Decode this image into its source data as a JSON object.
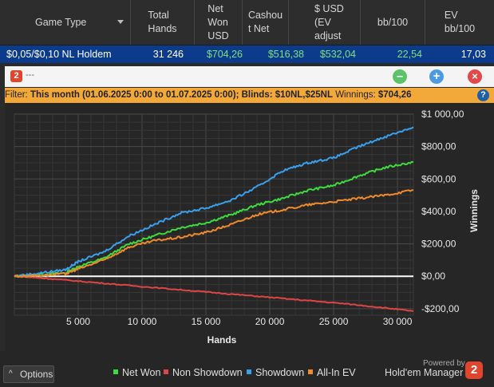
{
  "table": {
    "headers": {
      "game_type": "Game Type",
      "total_hands": "Total\nHands",
      "net_won": "Net\nWon\nUSD",
      "cashout": "Cashou\nt Net",
      "ev": "$ USD\n(EV\nadjust",
      "bb100": "bb/100",
      "ev_bb100": "EV\nbb/100"
    },
    "row": {
      "game_type": "$0,05/$0,10 NL Holdem",
      "total_hands": "31 246",
      "net_won": "$704,26",
      "cashout": "$516,38",
      "ev": "$532,04",
      "bb100": "22,54",
      "ev_bb100": "17,03"
    }
  },
  "window": {
    "logo_text": "2",
    "title": "---",
    "buttons": {
      "minimize": "–",
      "add": "+",
      "close": "×"
    },
    "help": "?"
  },
  "filter": {
    "prefix": "Filter: ",
    "range": "This month (01.06.2025 0:00 to 01.07.2025 0:00)",
    "blinds_label": "; Blinds: ",
    "blinds": "$10NL,$25NL",
    "winnings_label": " Winnings: ",
    "winnings": "$704,26"
  },
  "chart_data": {
    "type": "line",
    "xlabel": "Hands",
    "ylabel": "Winnings",
    "xlim": [
      0,
      31246
    ],
    "ylim": [
      -240,
      1000
    ],
    "x_ticks": [
      5000,
      10000,
      15000,
      20000,
      25000,
      30000
    ],
    "x_tick_labels": [
      "5 000",
      "10 000",
      "15 000",
      "20 000",
      "25 000",
      "30 000"
    ],
    "y_ticks": [
      1000,
      800,
      600,
      400,
      200,
      0,
      -200
    ],
    "y_tick_labels": [
      "$1 000,00",
      "$800,00",
      "$600,00",
      "$400,00",
      "$200,00",
      "$0,00",
      "-$200,00"
    ],
    "grid": true,
    "legend_position": "bottom",
    "series": [
      {
        "name": "Net Won",
        "color": "#3ddc3d",
        "x": [
          0,
          2000,
          4000,
          5000,
          7000,
          9000,
          11000,
          13000,
          15000,
          17000,
          19000,
          21000,
          23000,
          25000,
          27000,
          29000,
          31246
        ],
        "y": [
          0,
          10,
          20,
          60,
          110,
          200,
          250,
          300,
          330,
          380,
          440,
          480,
          530,
          560,
          620,
          670,
          704
        ]
      },
      {
        "name": "Non Showdown",
        "color": "#e04545",
        "x": [
          0,
          2000,
          5000,
          8000,
          11000,
          14000,
          17000,
          20000,
          23000,
          26000,
          29000,
          31246
        ],
        "y": [
          0,
          -10,
          -30,
          -50,
          -70,
          -90,
          -110,
          -130,
          -150,
          -170,
          -195,
          -215
        ]
      },
      {
        "name": "Showdown",
        "color": "#3aa0ee",
        "x": [
          0,
          2000,
          4000,
          5000,
          7000,
          9000,
          11000,
          13000,
          15000,
          17000,
          19000,
          21000,
          23000,
          25000,
          27000,
          29000,
          31246
        ],
        "y": [
          0,
          20,
          40,
          90,
          150,
          250,
          320,
          390,
          420,
          470,
          550,
          650,
          700,
          730,
          800,
          860,
          920
        ]
      },
      {
        "name": "All-In EV",
        "color": "#f08a2a",
        "x": [
          0,
          2000,
          4000,
          5000,
          7000,
          9000,
          11000,
          13000,
          15000,
          17000,
          19000,
          21000,
          23000,
          25000,
          27000,
          29000,
          31246
        ],
        "y": [
          0,
          5,
          15,
          45,
          100,
          180,
          220,
          240,
          270,
          320,
          380,
          410,
          440,
          460,
          480,
          500,
          532
        ]
      }
    ]
  },
  "footer": {
    "options": "Options",
    "options_chevron": "^",
    "powered": "Powered by",
    "brand": "Hold'em Manager",
    "brand_logo": "2"
  }
}
